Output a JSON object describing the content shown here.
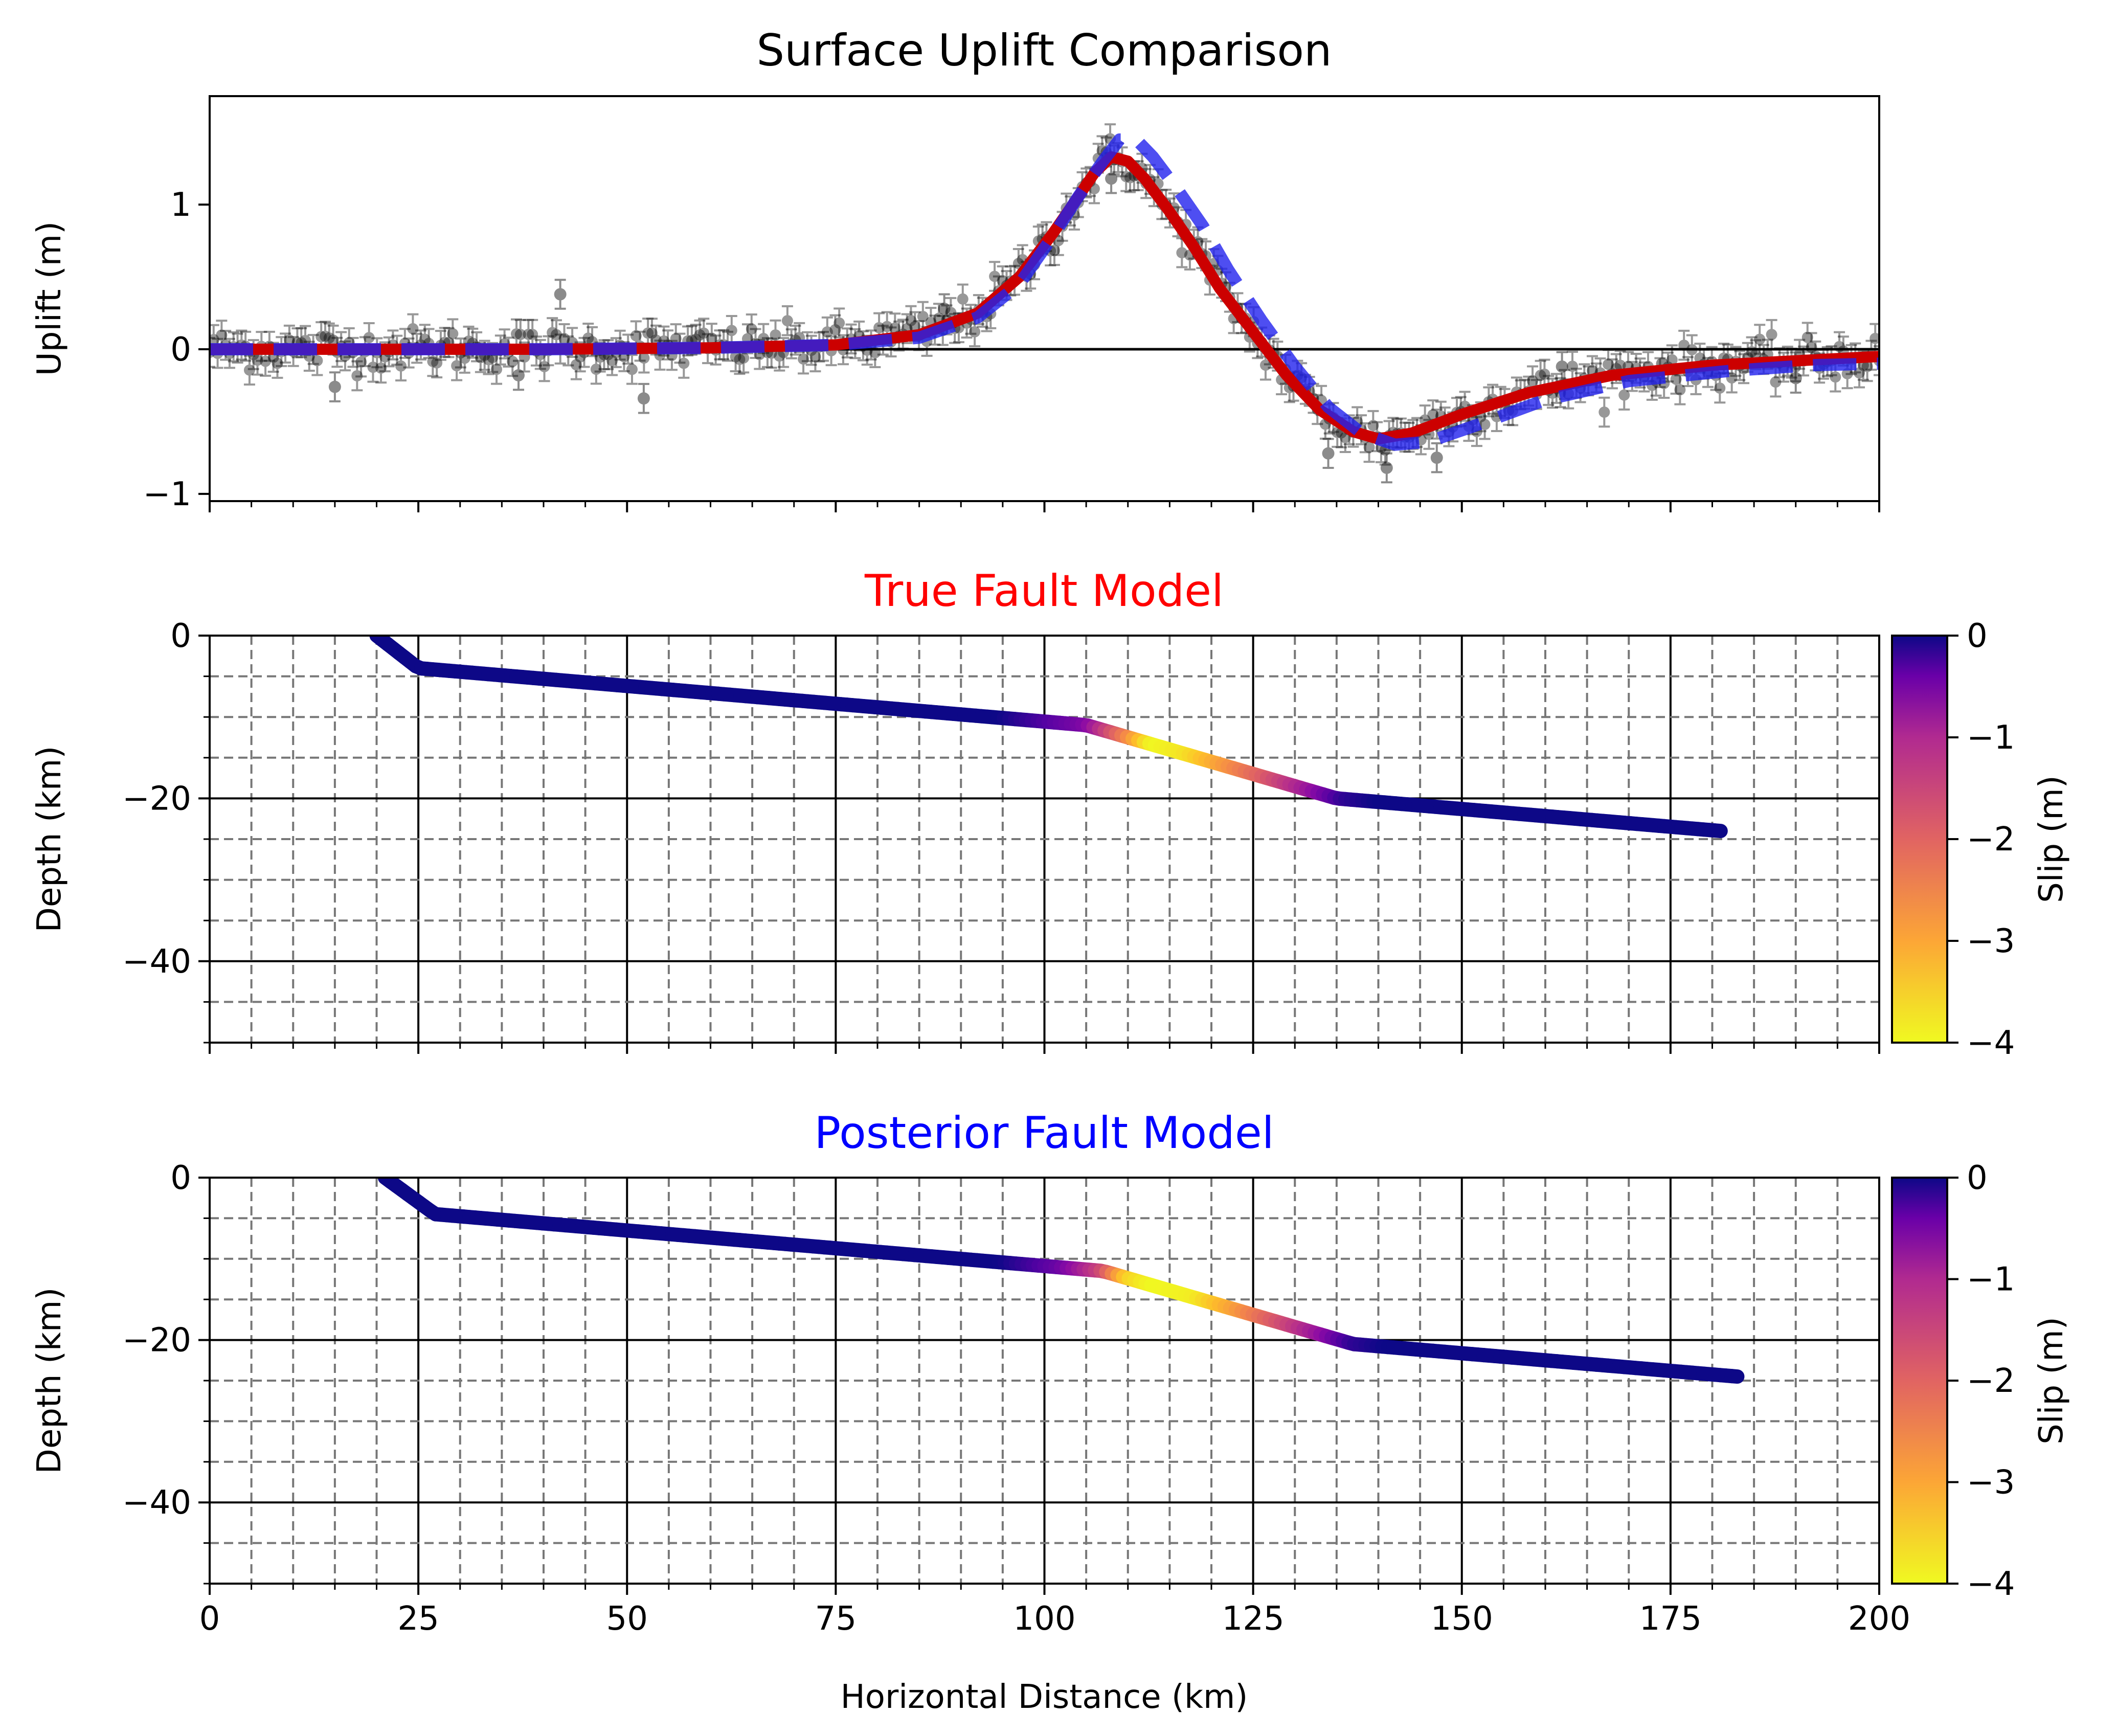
{
  "chart_data": [
    {
      "type": "scatter",
      "panel": "uplift",
      "title": "Surface Uplift Comparison",
      "title_color": "#000000",
      "xlabel": "",
      "ylabel": "Uplift (m)",
      "xlim": [
        0,
        200
      ],
      "ylim": [
        -1.05,
        1.75
      ],
      "yticks": [
        -1,
        0,
        1
      ],
      "xticks": [
        0,
        25,
        50,
        75,
        100,
        125,
        150,
        175,
        200
      ],
      "grid": false,
      "zero_line": true,
      "observations": {
        "x_range": [
          0,
          200
        ],
        "count": 420,
        "error_bar": 0.1,
        "noise_std": 0.07,
        "color": "#000000",
        "outliers": [
          [
            15,
            -0.26
          ],
          [
            42,
            0.38
          ],
          [
            52,
            -0.34
          ],
          [
            37,
            -0.18
          ],
          [
            88,
            0.28
          ],
          [
            108,
            1.18
          ],
          [
            134,
            -0.72
          ],
          [
            141,
            -0.82
          ],
          [
            147,
            -0.75
          ],
          [
            174,
            -0.1
          ],
          [
            162,
            -0.12
          ],
          [
            190,
            -0.2
          ]
        ]
      },
      "series": [
        {
          "role": "true-model",
          "color": "#cc0000",
          "style": "solid",
          "points": [
            [
              0,
              0
            ],
            [
              40,
              0
            ],
            [
              60,
              0.01
            ],
            [
              75,
              0.03
            ],
            [
              85,
              0.1
            ],
            [
              92,
              0.25
            ],
            [
              97,
              0.5
            ],
            [
              101,
              0.8
            ],
            [
              104,
              1.05
            ],
            [
              106,
              1.22
            ],
            [
              108,
              1.33
            ],
            [
              110,
              1.3
            ],
            [
              112,
              1.18
            ],
            [
              115,
              0.95
            ],
            [
              118,
              0.7
            ],
            [
              121,
              0.42
            ],
            [
              125,
              0.12
            ],
            [
              129,
              -0.18
            ],
            [
              133,
              -0.42
            ],
            [
              137,
              -0.57
            ],
            [
              140,
              -0.62
            ],
            [
              144,
              -0.58
            ],
            [
              150,
              -0.45
            ],
            [
              158,
              -0.3
            ],
            [
              168,
              -0.18
            ],
            [
              180,
              -0.11
            ],
            [
              190,
              -0.08
            ],
            [
              200,
              -0.05
            ]
          ]
        },
        {
          "role": "posterior-model",
          "color": "#2222ee",
          "style": "dashed",
          "points": [
            [
              0,
              0
            ],
            [
              40,
              0
            ],
            [
              60,
              0.01
            ],
            [
              75,
              0.03
            ],
            [
              85,
              0.08
            ],
            [
              92,
              0.22
            ],
            [
              97,
              0.45
            ],
            [
              101,
              0.78
            ],
            [
              104,
              1.05
            ],
            [
              107,
              1.3
            ],
            [
              109,
              1.45
            ],
            [
              111,
              1.45
            ],
            [
              113,
              1.33
            ],
            [
              116,
              1.1
            ],
            [
              119,
              0.85
            ],
            [
              122,
              0.55
            ],
            [
              126,
              0.2
            ],
            [
              130,
              -0.12
            ],
            [
              134,
              -0.4
            ],
            [
              138,
              -0.58
            ],
            [
              142,
              -0.66
            ],
            [
              146,
              -0.64
            ],
            [
              152,
              -0.52
            ],
            [
              160,
              -0.35
            ],
            [
              170,
              -0.22
            ],
            [
              182,
              -0.15
            ],
            [
              192,
              -0.11
            ],
            [
              200,
              -0.1
            ]
          ]
        }
      ]
    },
    {
      "type": "line",
      "panel": "true-fault",
      "title": "True Fault Model",
      "title_color": "#ff0000",
      "xlabel": "",
      "ylabel": "Depth (km)",
      "xlim": [
        0,
        200
      ],
      "ylim": [
        -50,
        0
      ],
      "yticks": [
        -40,
        -20,
        0
      ],
      "xticks": [
        0,
        25,
        50,
        75,
        100,
        125,
        150,
        175,
        200
      ],
      "grid": true,
      "fault_vertices": [
        [
          20,
          0
        ],
        [
          25,
          -4
        ],
        [
          105,
          -11
        ],
        [
          135,
          -20
        ],
        [
          181,
          -24
        ]
      ],
      "slip_profile": [
        [
          20,
          0
        ],
        [
          95,
          0
        ],
        [
          105,
          -1.0
        ],
        [
          110,
          -2.8
        ],
        [
          113,
          -4.0
        ],
        [
          117,
          -3.8
        ],
        [
          122,
          -3.0
        ],
        [
          127,
          -2.2
        ],
        [
          132,
          -1.3
        ],
        [
          136,
          -0.3
        ],
        [
          140,
          0
        ],
        [
          181,
          0
        ]
      ],
      "colorbar": {
        "label": "Slip (m)",
        "min": -4,
        "max": 0,
        "ticks": [
          -4,
          -3,
          -2,
          -1,
          0
        ]
      }
    },
    {
      "type": "line",
      "panel": "posterior-fault",
      "title": "Posterior Fault Model",
      "title_color": "#0000ff",
      "xlabel": "Horizontal Distance (km)",
      "ylabel": "Depth (km)",
      "xlim": [
        0,
        200
      ],
      "ylim": [
        -50,
        0
      ],
      "yticks": [
        -40,
        -20,
        0
      ],
      "xticks": [
        0,
        25,
        50,
        75,
        100,
        125,
        150,
        175,
        200
      ],
      "grid": true,
      "fault_vertices": [
        [
          21,
          0
        ],
        [
          27,
          -4.5
        ],
        [
          107,
          -11.5
        ],
        [
          137,
          -20.5
        ],
        [
          183,
          -24.5
        ]
      ],
      "slip_profile": [
        [
          21,
          0
        ],
        [
          95,
          0
        ],
        [
          102,
          -0.8
        ],
        [
          107,
          -2.0
        ],
        [
          110,
          -3.6
        ],
        [
          113,
          -4.0
        ],
        [
          118,
          -3.9
        ],
        [
          123,
          -3.1
        ],
        [
          128,
          -2.2
        ],
        [
          133,
          -1.3
        ],
        [
          137,
          -0.3
        ],
        [
          141,
          0
        ],
        [
          183,
          0
        ]
      ],
      "colorbar": {
        "label": "Slip (m)",
        "min": -4,
        "max": 0,
        "ticks": [
          -4,
          -3,
          -2,
          -1,
          0
        ]
      }
    }
  ]
}
